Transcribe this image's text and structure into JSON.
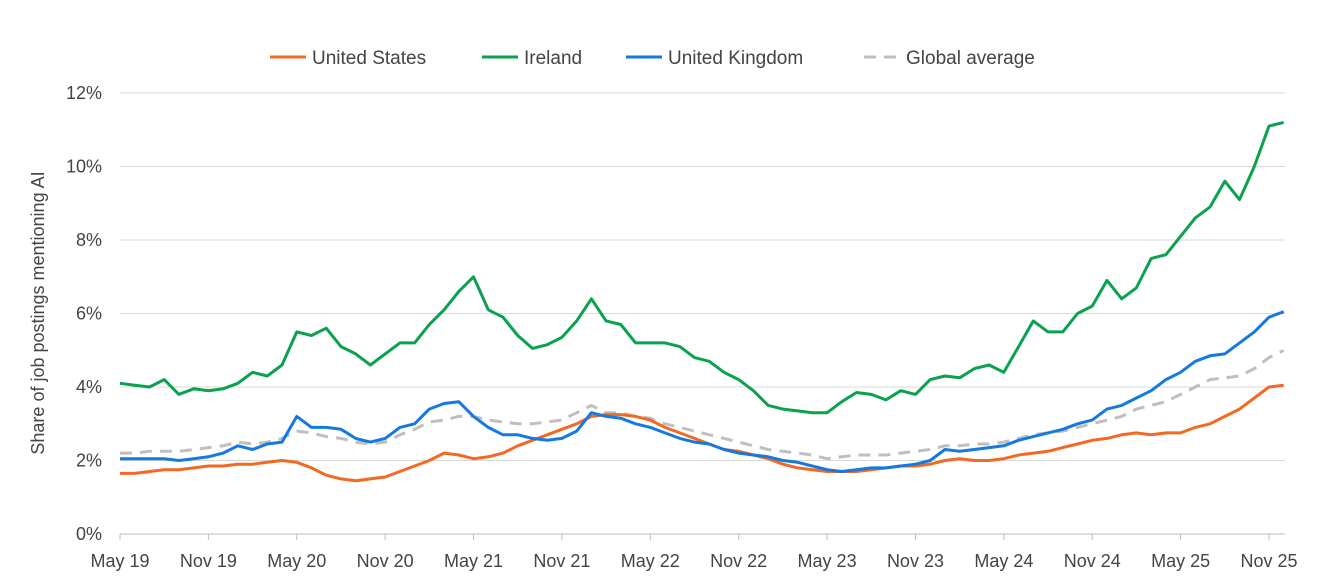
{
  "chart_data": {
    "type": "line",
    "title": "",
    "xlabel": "",
    "ylabel": "Share of job postings mentioning AI",
    "ylim": [
      0,
      12
    ],
    "yticks": [
      "0%",
      "2%",
      "4%",
      "6%",
      "8%",
      "10%",
      "12%"
    ],
    "ytick_values": [
      0,
      2,
      4,
      6,
      8,
      10,
      12
    ],
    "xticks": [
      "May 19",
      "Nov 19",
      "May 20",
      "Nov 20",
      "May 21",
      "Nov 21",
      "May 22",
      "Nov 22",
      "May 23",
      "Nov 23",
      "May 24",
      "Nov 24",
      "May 25",
      "Nov 25"
    ],
    "x_unit": "months since May 2019",
    "x_range": [
      0,
      79
    ],
    "grid": "horizontal",
    "legend_position": "top",
    "series": [
      {
        "name": "United States",
        "color": "#f26a21",
        "dashed": false,
        "values": [
          1.65,
          1.65,
          1.7,
          1.75,
          1.75,
          1.8,
          1.85,
          1.85,
          1.9,
          1.9,
          1.95,
          2.0,
          1.95,
          1.8,
          1.6,
          1.5,
          1.45,
          1.5,
          1.55,
          1.7,
          1.85,
          2.0,
          2.2,
          2.15,
          2.05,
          2.1,
          2.2,
          2.4,
          2.55,
          2.7,
          2.85,
          3.0,
          3.2,
          3.25,
          3.25,
          3.2,
          3.1,
          2.9,
          2.75,
          2.6,
          2.45,
          2.3,
          2.25,
          2.15,
          2.05,
          1.9,
          1.8,
          1.75,
          1.7,
          1.7,
          1.7,
          1.75,
          1.8,
          1.85,
          1.85,
          1.9,
          2.0,
          2.05,
          2.0,
          2.0,
          2.05,
          2.15,
          2.2,
          2.25,
          2.35,
          2.45,
          2.55,
          2.6,
          2.7,
          2.75,
          2.7,
          2.75,
          2.75,
          2.9,
          3.0,
          3.2,
          3.4,
          3.7,
          4.0,
          4.05
        ]
      },
      {
        "name": "Ireland",
        "color": "#0aa14f",
        "dashed": false,
        "values": [
          4.1,
          4.05,
          4.0,
          4.2,
          3.8,
          3.95,
          3.9,
          3.95,
          4.1,
          4.4,
          4.3,
          4.6,
          5.5,
          5.4,
          5.6,
          5.1,
          4.9,
          4.6,
          4.9,
          5.2,
          5.2,
          5.7,
          6.1,
          6.6,
          7.0,
          6.1,
          5.9,
          5.4,
          5.05,
          5.15,
          5.35,
          5.8,
          6.4,
          5.8,
          5.7,
          5.2,
          5.2,
          5.2,
          5.1,
          4.8,
          4.7,
          4.4,
          4.2,
          3.9,
          3.5,
          3.4,
          3.35,
          3.3,
          3.3,
          3.6,
          3.85,
          3.8,
          3.65,
          3.9,
          3.8,
          4.2,
          4.3,
          4.25,
          4.5,
          4.6,
          4.4,
          5.1,
          5.8,
          5.5,
          5.5,
          6.0,
          6.2,
          6.9,
          6.4,
          6.7,
          7.5,
          7.6,
          8.1,
          8.6,
          8.9,
          9.6,
          9.1,
          10.0,
          11.1,
          11.2
        ]
      },
      {
        "name": "United Kingdom",
        "color": "#1479e0",
        "dashed": false,
        "values": [
          2.05,
          2.05,
          2.05,
          2.05,
          2.0,
          2.05,
          2.1,
          2.2,
          2.4,
          2.3,
          2.45,
          2.5,
          3.2,
          2.9,
          2.9,
          2.85,
          2.6,
          2.5,
          2.6,
          2.9,
          3.0,
          3.4,
          3.55,
          3.6,
          3.2,
          2.9,
          2.7,
          2.7,
          2.6,
          2.55,
          2.6,
          2.8,
          3.3,
          3.2,
          3.15,
          3.0,
          2.9,
          2.75,
          2.6,
          2.5,
          2.45,
          2.3,
          2.2,
          2.15,
          2.1,
          2.0,
          1.95,
          1.85,
          1.75,
          1.7,
          1.75,
          1.8,
          1.8,
          1.85,
          1.9,
          2.0,
          2.3,
          2.25,
          2.3,
          2.35,
          2.4,
          2.55,
          2.65,
          2.75,
          2.85,
          3.0,
          3.1,
          3.4,
          3.5,
          3.7,
          3.9,
          4.2,
          4.4,
          4.7,
          4.85,
          4.9,
          5.2,
          5.5,
          5.9,
          6.05
        ]
      },
      {
        "name": "Global average",
        "color": "#bfbfbf",
        "dashed": true,
        "values": [
          2.2,
          2.2,
          2.25,
          2.25,
          2.25,
          2.3,
          2.35,
          2.4,
          2.5,
          2.45,
          2.5,
          2.6,
          2.8,
          2.75,
          2.65,
          2.6,
          2.5,
          2.45,
          2.5,
          2.7,
          2.85,
          3.05,
          3.1,
          3.2,
          3.2,
          3.1,
          3.05,
          3.0,
          3.0,
          3.05,
          3.1,
          3.3,
          3.5,
          3.3,
          3.3,
          3.2,
          3.15,
          3.0,
          2.9,
          2.8,
          2.7,
          2.6,
          2.5,
          2.4,
          2.3,
          2.25,
          2.2,
          2.15,
          2.05,
          2.1,
          2.15,
          2.15,
          2.15,
          2.2,
          2.25,
          2.3,
          2.4,
          2.4,
          2.45,
          2.45,
          2.5,
          2.6,
          2.7,
          2.75,
          2.8,
          2.9,
          3.0,
          3.1,
          3.2,
          3.4,
          3.5,
          3.6,
          3.8,
          4.0,
          4.2,
          4.25,
          4.3,
          4.5,
          4.8,
          5.0
        ]
      }
    ]
  }
}
